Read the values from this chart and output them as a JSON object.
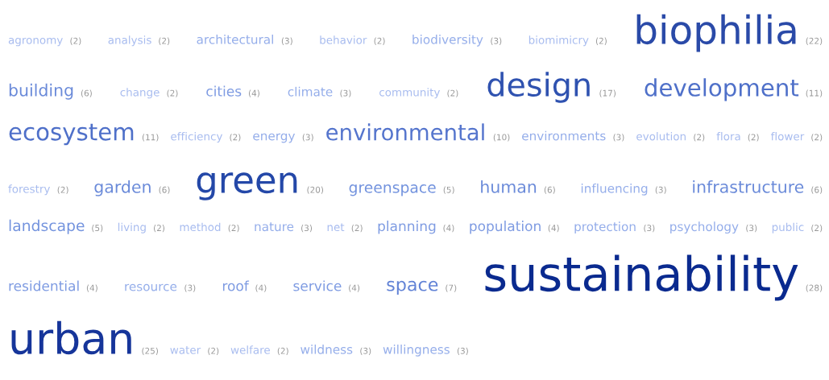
{
  "chart_data": {
    "type": "other",
    "categories": [
      "agronomy",
      "analysis",
      "architectural",
      "behavior",
      "biodiversity",
      "biomimicry",
      "biophilia",
      "building",
      "change",
      "cities",
      "climate",
      "community",
      "design",
      "development",
      "ecosystem",
      "efficiency",
      "energy",
      "environmental",
      "environments",
      "evolution",
      "flora",
      "flower",
      "forestry",
      "garden",
      "green",
      "greenspace",
      "human",
      "influencing",
      "infrastructure",
      "landscape",
      "living",
      "method",
      "nature",
      "net",
      "planning",
      "population",
      "protection",
      "psychology",
      "public",
      "residential",
      "resource",
      "roof",
      "service",
      "space",
      "sustainability",
      "urban",
      "water",
      "welfare",
      "wildness",
      "willingness"
    ],
    "values": [
      2,
      2,
      3,
      2,
      3,
      2,
      22,
      6,
      2,
      4,
      3,
      2,
      17,
      11,
      11,
      2,
      3,
      10,
      3,
      2,
      2,
      2,
      2,
      6,
      20,
      5,
      6,
      3,
      6,
      5,
      2,
      2,
      3,
      2,
      4,
      4,
      3,
      3,
      2,
      4,
      3,
      4,
      4,
      7,
      28,
      25,
      2,
      2,
      3,
      3
    ],
    "value_labels": [
      "(2)",
      "(2)",
      "(3)",
      "(2)",
      "(3)",
      "(2)",
      "(22)",
      "(6)",
      "(2)",
      "(4)",
      "(3)",
      "(2)",
      "(17)",
      "(11)",
      "(11)",
      "(2)",
      "(3)",
      "(10)",
      "(3)",
      "(2)",
      "(2)",
      "(2)",
      "(2)",
      "(6)",
      "(20)",
      "(5)",
      "(6)",
      "(3)",
      "(6)",
      "(5)",
      "(2)",
      "(2)",
      "(3)",
      "(2)",
      "(4)",
      "(4)",
      "(3)",
      "(3)",
      "(2)",
      "(4)",
      "(3)",
      "(4)",
      "(4)",
      "(7)",
      "(28)",
      "(25)",
      "(2)",
      "(2)",
      "(3)",
      "(3)"
    ],
    "colors": [
      "#a8bcef",
      "#a8bcef",
      "#94adea",
      "#a8bcef",
      "#94adea",
      "#a8bcef",
      "#2a4aa8",
      "#6a8ad9",
      "#a8bcef",
      "#7e9be2",
      "#94adea",
      "#a8bcef",
      "#2f52b0",
      "#4f70c9",
      "#4f70c9",
      "#a8bcef",
      "#94adea",
      "#5575cd",
      "#94adea",
      "#a8bcef",
      "#a8bcef",
      "#a8bcef",
      "#a8bcef",
      "#6a8ad9",
      "#2448a8",
      "#7393de",
      "#6a8ad9",
      "#94adea",
      "#6a8ad9",
      "#7393de",
      "#a8bcef",
      "#a8bcef",
      "#94adea",
      "#a8bcef",
      "#7e9be2",
      "#7e9be2",
      "#94adea",
      "#94adea",
      "#a8bcef",
      "#7e9be2",
      "#94adea",
      "#7e9be2",
      "#7e9be2",
      "#6283d6",
      "#0a2a8f",
      "#16359a",
      "#a8bcef",
      "#a8bcef",
      "#94adea",
      "#94adea"
    ]
  }
}
